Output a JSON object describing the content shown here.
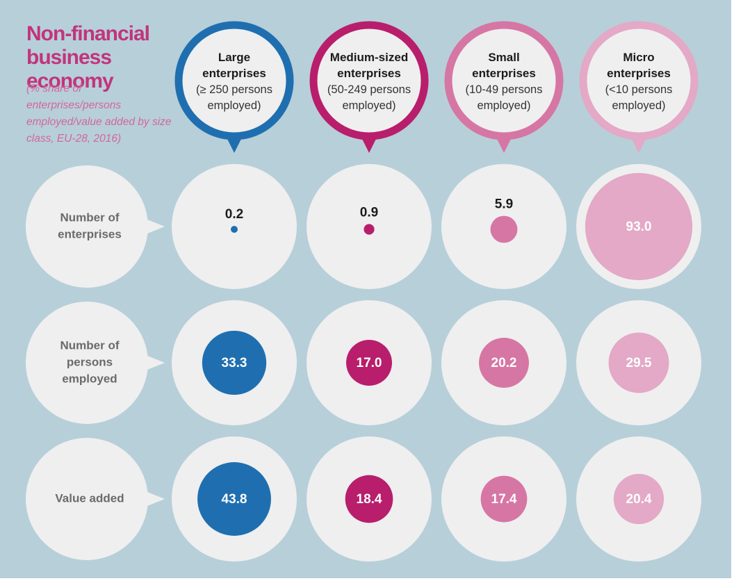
{
  "header": {
    "title": "Non-financial business economy",
    "subtitle": "(% share of enterprises/persons employed/value added by size class, EU-28, 2016)"
  },
  "chart_data": {
    "type": "table",
    "title": "Non-financial business economy",
    "subtitle": "(% share of enterprises/persons employed/value added by size class, EU-28, 2016)",
    "columns": [
      {
        "name": "Large enterprises",
        "title_lines": [
          "Large",
          "enterprises"
        ],
        "detail_lines": [
          "(≥ 250 persons",
          "employed)"
        ],
        "color": "#1f6fb0"
      },
      {
        "name": "Medium-sized enterprises",
        "title_lines": [
          "Medium-sized",
          "enterprises"
        ],
        "detail_lines": [
          "(50-249 persons",
          "employed)"
        ],
        "color": "#b81e6c"
      },
      {
        "name": "Small enterprises",
        "title_lines": [
          "Small",
          "enterprises"
        ],
        "detail_lines": [
          "(10-49 persons",
          "employed)"
        ],
        "color": "#d676a4"
      },
      {
        "name": "Micro enterprises",
        "title_lines": [
          "Micro",
          "enterprises"
        ],
        "detail_lines": [
          "(<10 persons",
          "employed)"
        ],
        "color": "#e3a9c6"
      }
    ],
    "rows": [
      {
        "name": "Number of enterprises",
        "label_lines": [
          "Number of",
          "enterprises"
        ],
        "values": [
          0.2,
          0.9,
          5.9,
          93.0
        ]
      },
      {
        "name": "Number of persons employed",
        "label_lines": [
          "Number of",
          "persons",
          "employed"
        ],
        "values": [
          33.3,
          17.0,
          20.2,
          29.5
        ]
      },
      {
        "name": "Value added",
        "label_lines": [
          "Value added"
        ],
        "values": [
          43.8,
          18.4,
          17.4,
          20.4
        ]
      }
    ],
    "value_labels": [
      [
        "0.2",
        "0.9",
        "5.9",
        "93.0"
      ],
      [
        "33.3",
        "17.0",
        "20.2",
        "29.5"
      ],
      [
        "43.8",
        "18.4",
        "17.4",
        "20.4"
      ]
    ],
    "encoding": "circle area proportional to percentage share"
  }
}
